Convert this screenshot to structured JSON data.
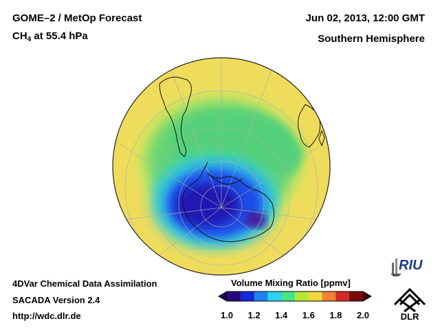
{
  "header": {
    "title": "GOME–2 / MetOp Forecast",
    "species_main": "CH",
    "species_sub": "4",
    "species_rest": " at 55.4 hPa",
    "datetime": "Jun 02, 2013, 12:00 GMT",
    "region": "Southern Hemisphere"
  },
  "footer": {
    "line1": "4DVar Chemical Data Assimilation",
    "line2": "SACADA Version 2.4",
    "url": "http://wdc.dlr.de"
  },
  "colorbar": {
    "title": "Volume Mixing Ratio [ppmv]",
    "min": 1.0,
    "max": 2.0,
    "ticks": [
      "1.0",
      "1.2",
      "1.4",
      "1.6",
      "1.8",
      "2.0"
    ],
    "colors": [
      "#2a0a78",
      "#1428d8",
      "#1e82f0",
      "#2ad2f0",
      "#46e686",
      "#b8e63a",
      "#ecd83a",
      "#f08232",
      "#d22828",
      "#7a0a0a"
    ]
  },
  "logos": {
    "riu": "RIU",
    "dlr": "DLR"
  }
}
